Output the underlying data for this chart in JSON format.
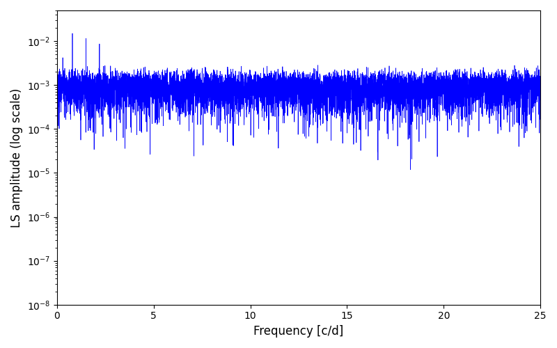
{
  "title": "",
  "xlabel": "Frequency [c/d]",
  "ylabel": "LS amplitude (log scale)",
  "line_color": "#0000ff",
  "line_width": 0.5,
  "xlim": [
    0,
    25
  ],
  "ylim": [
    1e-08,
    0.05
  ],
  "x_ticks": [
    0,
    5,
    10,
    15,
    20,
    25
  ],
  "n_points": 8000,
  "seed": 42,
  "background_color": "#ffffff",
  "fig_width": 8.0,
  "fig_height": 5.0,
  "dpi": 100
}
